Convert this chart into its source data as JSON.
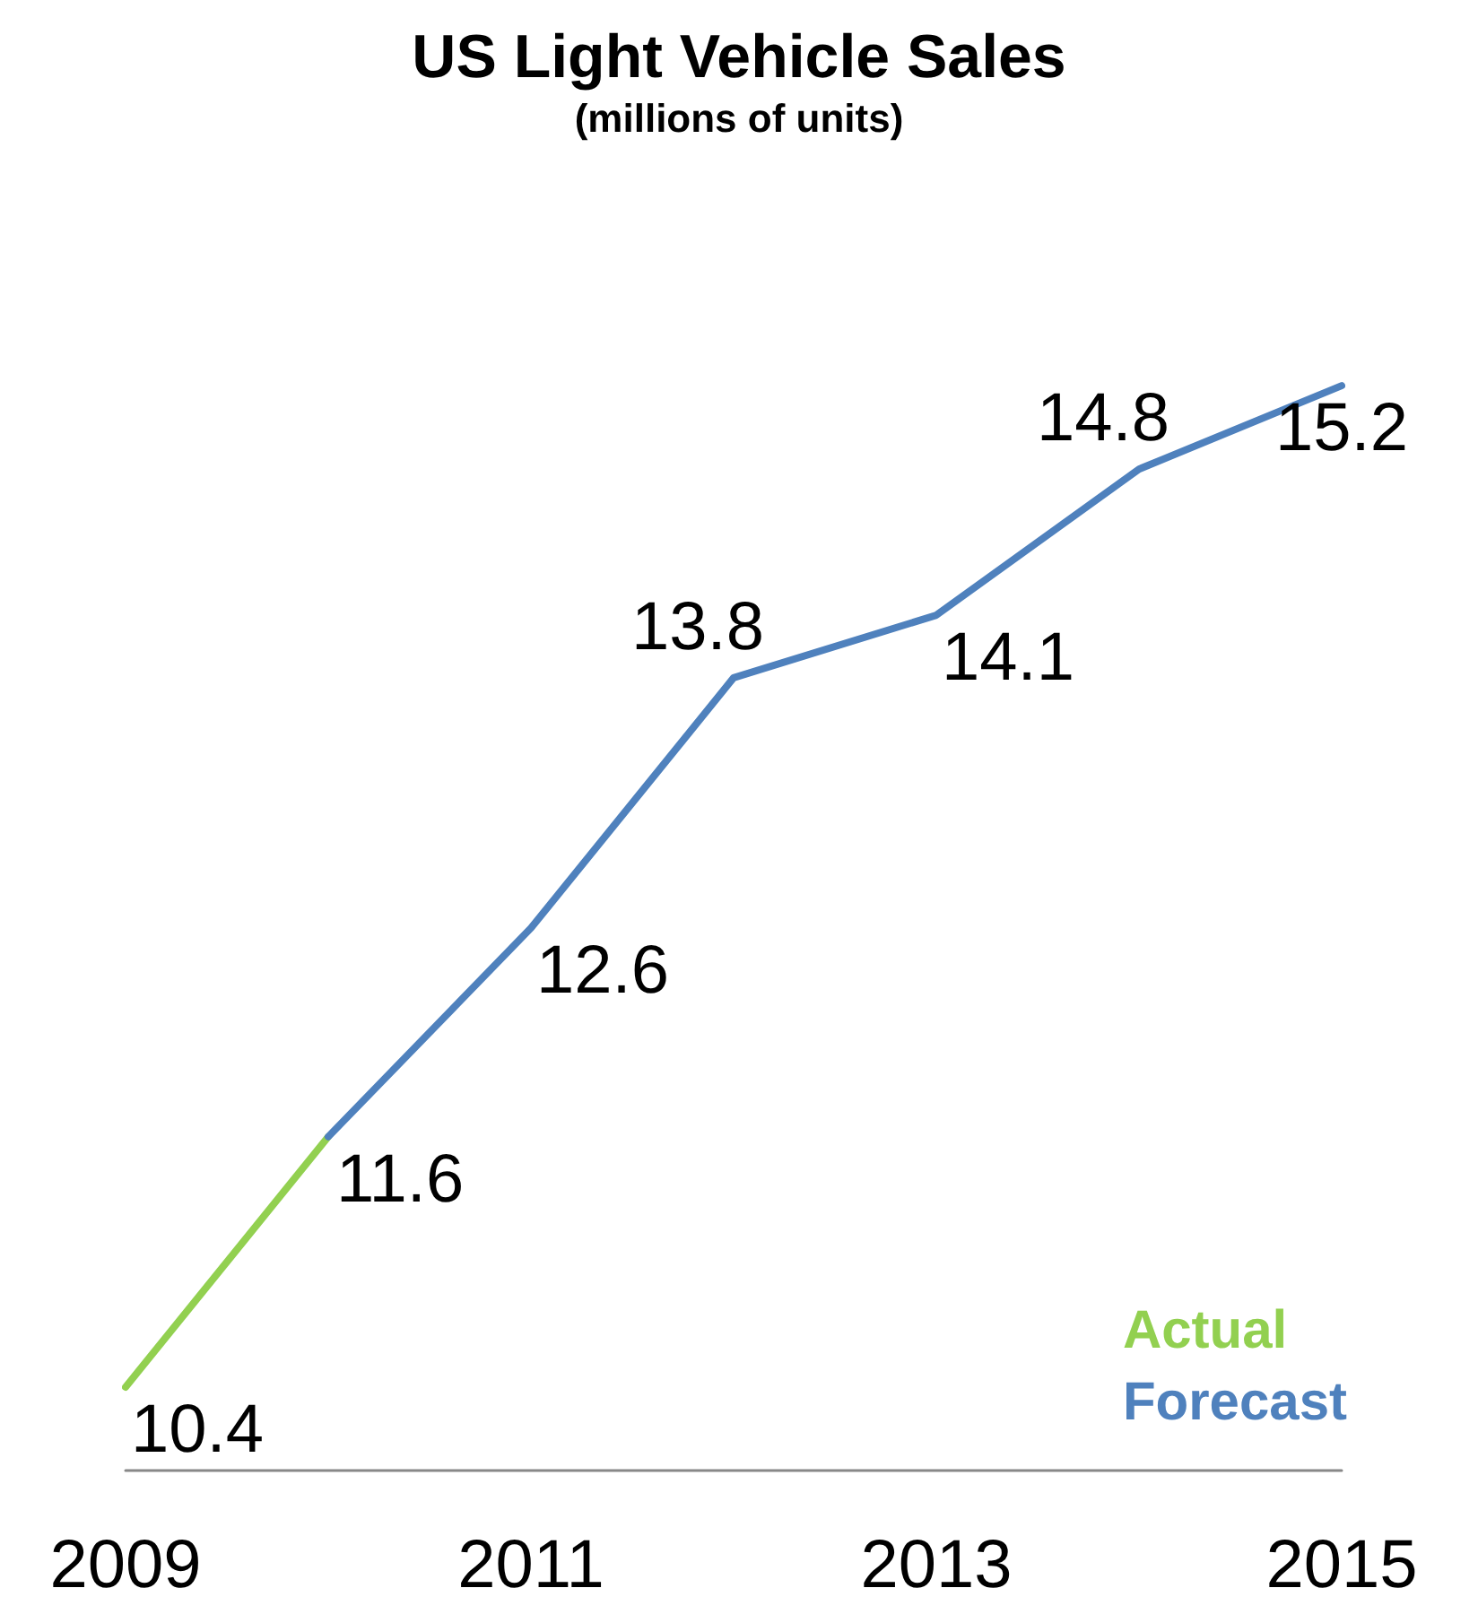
{
  "chart_data": {
    "type": "line",
    "title": "US Light Vehicle Sales",
    "subtitle": "(millions of units)",
    "xlim": [
      2009,
      2015
    ],
    "xticks": [
      2009,
      2011,
      2013,
      2015
    ],
    "series": [
      {
        "name": "Actual",
        "color": "#92d050",
        "x": [
          2009,
          2010
        ],
        "values": [
          10.4,
          11.6
        ],
        "value_labels": [
          "10.4",
          null
        ]
      },
      {
        "name": "Forecast",
        "color": "#4f81bd",
        "x": [
          2010,
          2011,
          2012,
          2013,
          2014,
          2015
        ],
        "values": [
          11.6,
          12.6,
          13.8,
          14.1,
          14.8,
          15.2
        ],
        "value_labels": [
          "11.6",
          "12.6",
          "13.8",
          "14.1",
          "14.8",
          "15.2"
        ]
      }
    ],
    "grid": false,
    "legend": "bottom right",
    "marker": "none",
    "line_style": "solid",
    "tick_labels": "x"
  }
}
